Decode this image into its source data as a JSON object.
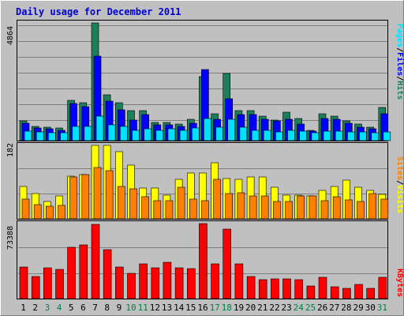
{
  "title": "Daily usage for December 2011",
  "colors": {
    "background": "#c0c0c0",
    "grid": "#808080",
    "hits": "#1d7f5a",
    "files": "#0000ff",
    "pages": "#00e0ff",
    "visits": "#ffff00",
    "sites": "#ff8000",
    "kbytes": "#ff0000",
    "weekday": "#000000",
    "weekend": "#00804a"
  },
  "panels": {
    "top": {
      "max_label": "4864",
      "legend": [
        "Pages",
        "/",
        "Files",
        "/",
        "Hits"
      ]
    },
    "middle": {
      "max_label": "182",
      "legend": [
        "Sites",
        "/",
        "Visits"
      ]
    },
    "bottom": {
      "max_label": "73388",
      "legend": [
        "KBytes"
      ]
    }
  },
  "chart_data": [
    {
      "type": "bar",
      "title": "Daily usage for December 2011",
      "categories": [
        "1",
        "2",
        "3",
        "4",
        "5",
        "6",
        "7",
        "8",
        "9",
        "10",
        "11",
        "12",
        "13",
        "14",
        "15",
        "16",
        "17",
        "18",
        "19",
        "20",
        "21",
        "22",
        "23",
        "24",
        "25",
        "26",
        "27",
        "28",
        "29",
        "30",
        "31"
      ],
      "weekend_days": [
        "3",
        "4",
        "10",
        "11",
        "17",
        "18",
        "24",
        "25",
        "31"
      ],
      "ymax_label": "4864",
      "series": [
        {
          "name": "Hits",
          "values": [
            800,
            600,
            560,
            520,
            1680,
            1560,
            4864,
            1880,
            1560,
            1240,
            1240,
            760,
            760,
            680,
            880,
            2640,
            1120,
            2790,
            1240,
            1240,
            1000,
            840,
            1160,
            920,
            440,
            1120,
            1000,
            800,
            680,
            560,
            1360
          ]
        },
        {
          "name": "Files",
          "values": [
            720,
            520,
            480,
            440,
            1520,
            1400,
            3480,
            1640,
            1280,
            840,
            1080,
            640,
            640,
            600,
            720,
            2950,
            880,
            1720,
            1080,
            1080,
            880,
            800,
            880,
            680,
            400,
            920,
            880,
            720,
            560,
            480,
            1120
          ]
        },
        {
          "name": "Pages",
          "values": [
            380,
            360,
            320,
            320,
            600,
            600,
            1000,
            640,
            600,
            440,
            480,
            440,
            480,
            440,
            520,
            920,
            560,
            880,
            560,
            440,
            440,
            360,
            440,
            400,
            320,
            400,
            400,
            360,
            360,
            320,
            360
          ]
        }
      ]
    },
    {
      "type": "bar",
      "categories": [
        "1",
        "2",
        "3",
        "4",
        "5",
        "6",
        "7",
        "8",
        "9",
        "10",
        "11",
        "12",
        "13",
        "14",
        "15",
        "16",
        "17",
        "18",
        "19",
        "20",
        "21",
        "22",
        "23",
        "24",
        "25",
        "26",
        "27",
        "28",
        "29",
        "30",
        "31"
      ],
      "ymax_label": "182",
      "series": [
        {
          "name": "Visits",
          "values": [
            81,
            62,
            43,
            57,
            105,
            109,
            182,
            182,
            166,
            134,
            76,
            76,
            59,
            97,
            114,
            114,
            139,
            100,
            97,
            103,
            103,
            79,
            58,
            59,
            56,
            70,
            80,
            95,
            79,
            70,
            61
          ]
        },
        {
          "name": "Sites",
          "values": [
            48,
            36,
            31,
            34,
            103,
            109,
            128,
            120,
            81,
            75,
            55,
            45,
            45,
            79,
            49,
            45,
            97,
            63,
            64,
            56,
            56,
            43,
            43,
            56,
            56,
            45,
            55,
            47,
            43,
            63,
            49
          ]
        }
      ]
    },
    {
      "type": "bar",
      "categories": [
        "1",
        "2",
        "3",
        "4",
        "5",
        "6",
        "7",
        "8",
        "9",
        "10",
        "11",
        "12",
        "13",
        "14",
        "15",
        "16",
        "17",
        "18",
        "19",
        "20",
        "21",
        "22",
        "23",
        "24",
        "25",
        "26",
        "27",
        "28",
        "29",
        "30",
        "31"
      ],
      "ymax_label": "73388",
      "series": [
        {
          "name": "KBytes",
          "values": [
            30700,
            21700,
            30000,
            28800,
            50000,
            52300,
            73000,
            47700,
            30700,
            25000,
            34100,
            30000,
            35200,
            30000,
            29500,
            73388,
            34100,
            68200,
            34100,
            21700,
            18200,
            19300,
            19300,
            18200,
            12500,
            20500,
            11400,
            10200,
            13600,
            10200,
            20500
          ]
        }
      ]
    }
  ]
}
